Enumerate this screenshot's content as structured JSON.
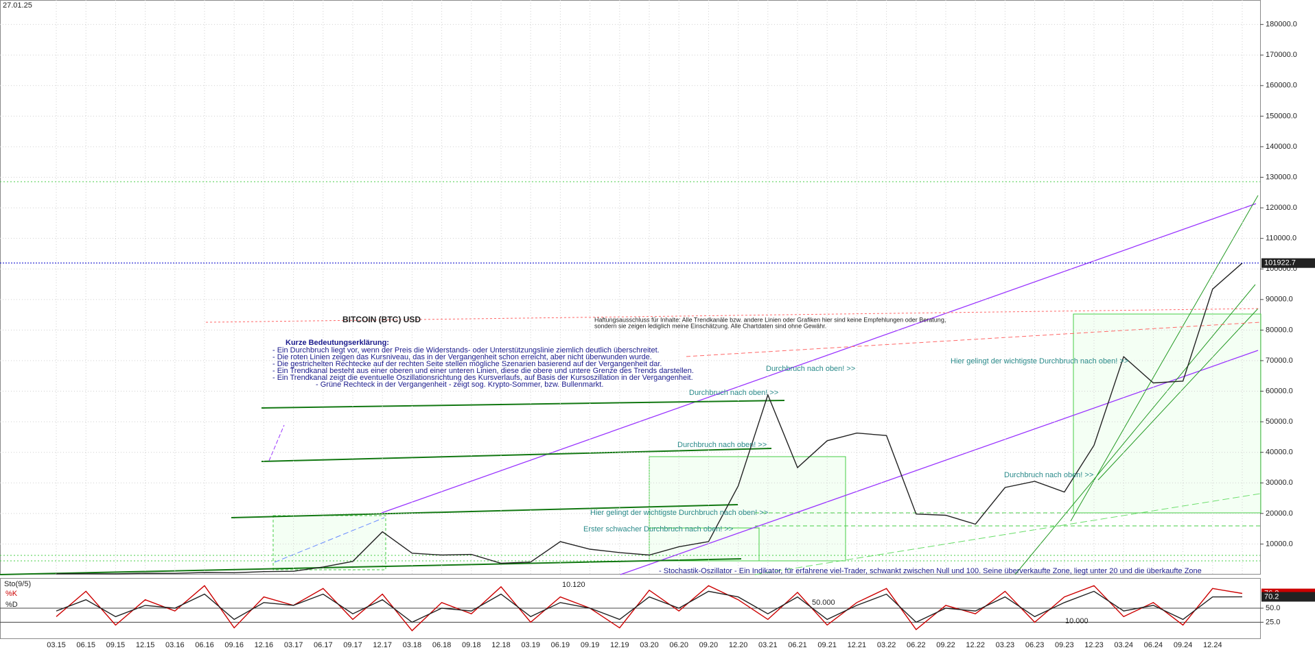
{
  "date_label": "27.01.25",
  "chart_data": [
    {
      "type": "line",
      "title": "BITCOIN (BTC) USD",
      "categories": [
        "03.15",
        "06.15",
        "09.15",
        "12.15",
        "03.16",
        "06.16",
        "09.16",
        "12.16",
        "03.17",
        "06.17",
        "09.17",
        "12.17",
        "03.18",
        "06.18",
        "09.18",
        "12.18",
        "03.19",
        "06.19",
        "09.19",
        "12.19",
        "03.20",
        "06.20",
        "09.20",
        "12.20",
        "03.21",
        "06.21",
        "09.21",
        "12.21",
        "03.22",
        "06.22",
        "09.22",
        "12.22",
        "03.23",
        "06.23",
        "09.23",
        "12.23",
        "03.24",
        "06.24",
        "09.24",
        "12.24",
        null
      ],
      "series": [
        {
          "name": "BTC",
          "color": "#222222",
          "values": [
            250,
            260,
            235,
            430,
            415,
            670,
            610,
            960,
            1080,
            2500,
            4300,
            14000,
            7000,
            6400,
            6600,
            3700,
            4100,
            10800,
            8300,
            7200,
            6400,
            9100,
            10800,
            29000,
            58800,
            35000,
            43800,
            46300,
            45500,
            19800,
            19400,
            16500,
            28500,
            30500,
            27000,
            42300,
            71300,
            62700,
            63300,
            93400,
            101922.7
          ]
        }
      ],
      "ylim": [
        0,
        188000
      ],
      "yticks": [
        {
          "value": 10000,
          "label": "10000.0"
        },
        {
          "value": 20000,
          "label": "20000.0"
        },
        {
          "value": 30000,
          "label": "30000.0"
        },
        {
          "value": 40000,
          "label": "40000.0"
        },
        {
          "value": 50000,
          "label": "50000.0"
        },
        {
          "value": 60000,
          "label": "60000.0"
        },
        {
          "value": 70000,
          "label": "70000.0"
        },
        {
          "value": 80000,
          "label": "80000.0"
        },
        {
          "value": 90000,
          "label": "90000.0"
        },
        {
          "value": 100000,
          "label": "100000.0"
        },
        {
          "value": 110000,
          "label": "110000.0"
        },
        {
          "value": 120000,
          "label": "120000.0"
        },
        {
          "value": 130000,
          "label": "130000.0"
        },
        {
          "value": 140000,
          "label": "140000.0"
        },
        {
          "value": 150000,
          "label": "150000.0"
        },
        {
          "value": 160000,
          "label": "160000.0"
        },
        {
          "value": 170000,
          "label": "170000.0"
        },
        {
          "value": 180000,
          "label": "180000.0"
        }
      ],
      "grid": true,
      "current_line_color": "#0000cc",
      "annotations": [
        "Kurze Bedeutungserklärung:",
        "- Ein Durchbruch liegt vor, wenn der Preis die Widerstands- oder Unterstützungslinie ziemlich deutlich überschreitet.",
        "- Die roten Linien zeigen das Kursniveau, das in der Vergangenheit schon erreicht, aber nicht überwunden wurde.",
        "- Die gestrichelten Rechtecke auf der rechten Seite stellen mögliche Szenarien basierend auf der Vergangenheit dar.",
        "- Ein Trendkanal besteht aus einer oberen und einer unteren Linien, diese die obere und untere Grenze des Trends darstellen.",
        "- Ein Trendkanal zeigt die eventuelle Oszillationsrichtung des Kursverlaufs, auf Basis der Kursoszillation in der Vergangenheit.",
        "- Grüne Rechteck in der Vergangenheit - zeigt sog. Krypto-Sommer, bzw. Bullenmarkt.",
        "Haftungsausschluss für Inhalte: Alle Trendkanäle bzw. andere Linien oder Grafiken hier sind keine Empfehlungen oder Beratung,",
        "sondern sie zeigen lediglich meine Einschätzung. Alle Chartdaten sind ohne Gewähr.",
        "Durchbruch nach oben! >>",
        "Durchbruch nach oben! >>",
        "Durchbruch nach oben! >>",
        "Durchbruch nach oben! >>",
        "Hier gelingt der wichtigste Durchbruch nach oben! >>",
        "Hier gelingt der wichtigste Durchbruch nach oben! >>",
        "Erster schwacher Durchbruch nach oben! >>",
        "- Stochastik-Oszillator - Ein Indikator, für erfahrene viel-Trader, schwankt zwischen Null und 100. Seine überverkaufte Zone, liegt unter 20 und die überkaufte Zone"
      ]
    },
    {
      "type": "line",
      "title": "Sto(9/5)",
      "series": [
        {
          "name": "%K",
          "color": "#cc0000",
          "values": [
            35,
            80,
            20,
            65,
            45,
            90,
            15,
            70,
            55,
            85,
            30,
            75,
            10,
            60,
            40,
            88,
            25,
            70,
            50,
            15,
            82,
            45,
            90,
            65,
            30,
            78,
            20,
            60,
            85,
            12,
            55,
            40,
            80,
            25,
            70,
            90,
            35,
            60,
            20,
            85,
            76.2
          ]
        },
        {
          "name": "%D",
          "color": "#222222",
          "values": [
            45,
            65,
            35,
            55,
            50,
            75,
            30,
            60,
            55,
            75,
            40,
            65,
            25,
            50,
            45,
            75,
            35,
            60,
            50,
            30,
            70,
            50,
            80,
            70,
            40,
            70,
            30,
            55,
            75,
            25,
            50,
            45,
            70,
            35,
            60,
            80,
            45,
            55,
            30,
            70,
            70.2
          ]
        }
      ],
      "ylim": [
        0,
        100
      ],
      "yticks": [
        {
          "value": 50,
          "label": "50.0"
        },
        {
          "value": 25,
          "label": "25.0"
        }
      ],
      "annotations": [
        "10.120",
        "50.000",
        "10.000"
      ]
    }
  ]
}
